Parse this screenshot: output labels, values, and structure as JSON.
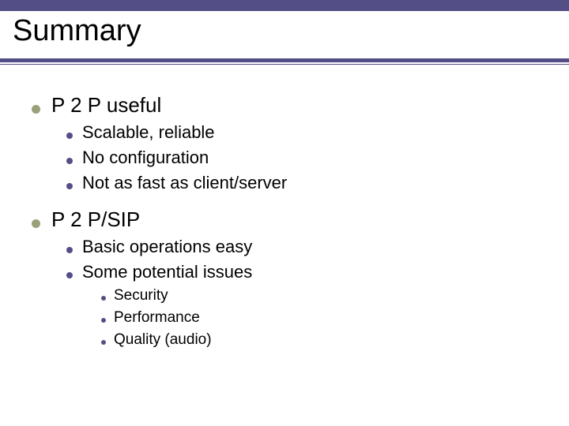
{
  "colors": {
    "band": "#534f86",
    "underline": "#534f86",
    "bullet_l1": "#9aa17a",
    "bullet_l2": "#534f86",
    "bullet_l3": "#534f86",
    "text": "#000000",
    "background": "#ffffff"
  },
  "fontsizes": {
    "title": 38,
    "l1": 26,
    "l2": 22,
    "l3": 19
  },
  "title": "Summary",
  "items": {
    "p2p": {
      "label": "P 2 P useful",
      "children": {
        "c0": "Scalable, reliable",
        "c1": "No configuration",
        "c2": "Not as fast as client/server"
      }
    },
    "p2psip": {
      "label": "P 2 P/SIP",
      "children": {
        "c0": "Basic operations easy",
        "c1": {
          "label": "Some potential issues",
          "children": {
            "s0": "Security",
            "s1": "Performance",
            "s2": "Quality (audio)"
          }
        }
      }
    }
  }
}
